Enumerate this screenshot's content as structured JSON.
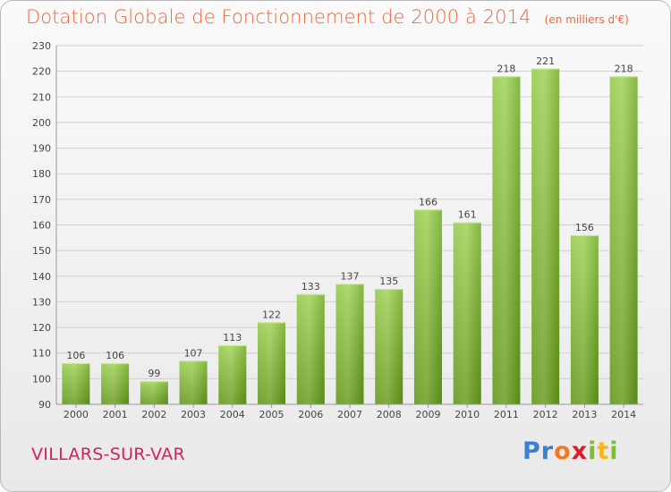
{
  "title": "Dotation Globale de Fonctionnement de 2000 à 2014",
  "unit_note": "(en milliers d'€)",
  "commune": "VILLARS-SUR-VAR",
  "logo": {
    "letters": [
      "P",
      "r",
      "o",
      "x",
      "i",
      "t",
      "i"
    ],
    "colors": [
      "#3a7fd0",
      "#3a7fd0",
      "#f27a1e",
      "#d9202a",
      "#7cbf2a",
      "#f5b81c",
      "#7cbf2a"
    ]
  },
  "colors": {
    "bar_light": "#a3d35a",
    "bar_dark": "#5e9c12",
    "grid": "#cfcfcf",
    "title": "#f0673a",
    "commune": "#d4205b"
  },
  "chart_data": {
    "type": "bar",
    "title": "Dotation Globale de Fonctionnement de 2000 à 2014",
    "subtitle": "(en milliers d'€)",
    "categories": [
      "2000",
      "2001",
      "2002",
      "2003",
      "2004",
      "2005",
      "2006",
      "2007",
      "2008",
      "2009",
      "2010",
      "2011",
      "2012",
      "2013",
      "2014"
    ],
    "values": [
      106,
      106,
      99,
      107,
      113,
      122,
      133,
      137,
      135,
      166,
      161,
      218,
      221,
      156,
      218
    ],
    "ylim": [
      90,
      230
    ],
    "yticks": [
      90,
      100,
      110,
      120,
      130,
      140,
      150,
      160,
      170,
      180,
      190,
      200,
      210,
      220,
      230
    ],
    "grid": true,
    "xlabel": "",
    "ylabel": ""
  }
}
